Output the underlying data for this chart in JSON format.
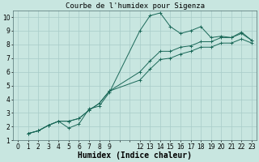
{
  "title": "Courbe de l'humidex pour Sigenza",
  "xlabel": "Humidex (Indice chaleur)",
  "xlim": [
    -0.5,
    23.5
  ],
  "ylim": [
    1,
    10.5
  ],
  "xtick_positions": [
    0,
    1,
    2,
    3,
    4,
    5,
    6,
    7,
    8,
    9,
    10,
    11,
    12,
    13,
    14,
    15,
    16,
    17,
    18,
    19,
    20,
    21,
    22,
    23
  ],
  "xtick_labels": [
    "0",
    "1",
    "2",
    "3",
    "4",
    "5",
    "6",
    "7",
    "8",
    "9",
    "",
    "",
    "12",
    "13",
    "14",
    "15",
    "16",
    "17",
    "18",
    "19",
    "20",
    "21",
    "22",
    "23"
  ],
  "yticks": [
    1,
    2,
    3,
    4,
    5,
    6,
    7,
    8,
    9,
    10
  ],
  "bg_color": "#c8e6e0",
  "grid_color": "#a8ccc8",
  "line_color": "#1a6858",
  "line1_x": [
    1,
    2,
    3,
    4,
    5,
    6,
    7,
    8,
    9,
    12,
    13,
    14,
    15,
    16,
    17,
    18,
    19,
    20,
    21,
    22,
    23
  ],
  "line1_y": [
    1.5,
    1.7,
    2.1,
    2.4,
    1.9,
    2.2,
    3.3,
    3.5,
    4.5,
    9.0,
    10.1,
    10.3,
    9.3,
    8.8,
    9.0,
    9.3,
    8.5,
    8.6,
    8.5,
    8.9,
    8.3
  ],
  "line2_x": [
    1,
    2,
    3,
    4,
    5,
    6,
    7,
    8,
    9,
    12,
    13,
    14,
    15,
    16,
    17,
    18,
    19,
    20,
    21,
    22,
    23
  ],
  "line2_y": [
    1.5,
    1.7,
    2.1,
    2.4,
    2.4,
    2.6,
    3.2,
    3.7,
    4.6,
    6.0,
    6.8,
    7.5,
    7.5,
    7.8,
    7.9,
    8.2,
    8.2,
    8.5,
    8.5,
    8.8,
    8.3
  ],
  "line3_x": [
    1,
    2,
    3,
    4,
    5,
    6,
    7,
    8,
    9,
    12,
    13,
    14,
    15,
    16,
    17,
    18,
    19,
    20,
    21,
    22,
    23
  ],
  "line3_y": [
    1.5,
    1.7,
    2.1,
    2.4,
    2.4,
    2.6,
    3.2,
    3.7,
    4.6,
    5.4,
    6.2,
    6.9,
    7.0,
    7.3,
    7.5,
    7.8,
    7.8,
    8.1,
    8.1,
    8.4,
    8.1
  ],
  "title_fontsize": 6.5,
  "axis_fontsize": 7,
  "tick_fontsize": 5.5
}
